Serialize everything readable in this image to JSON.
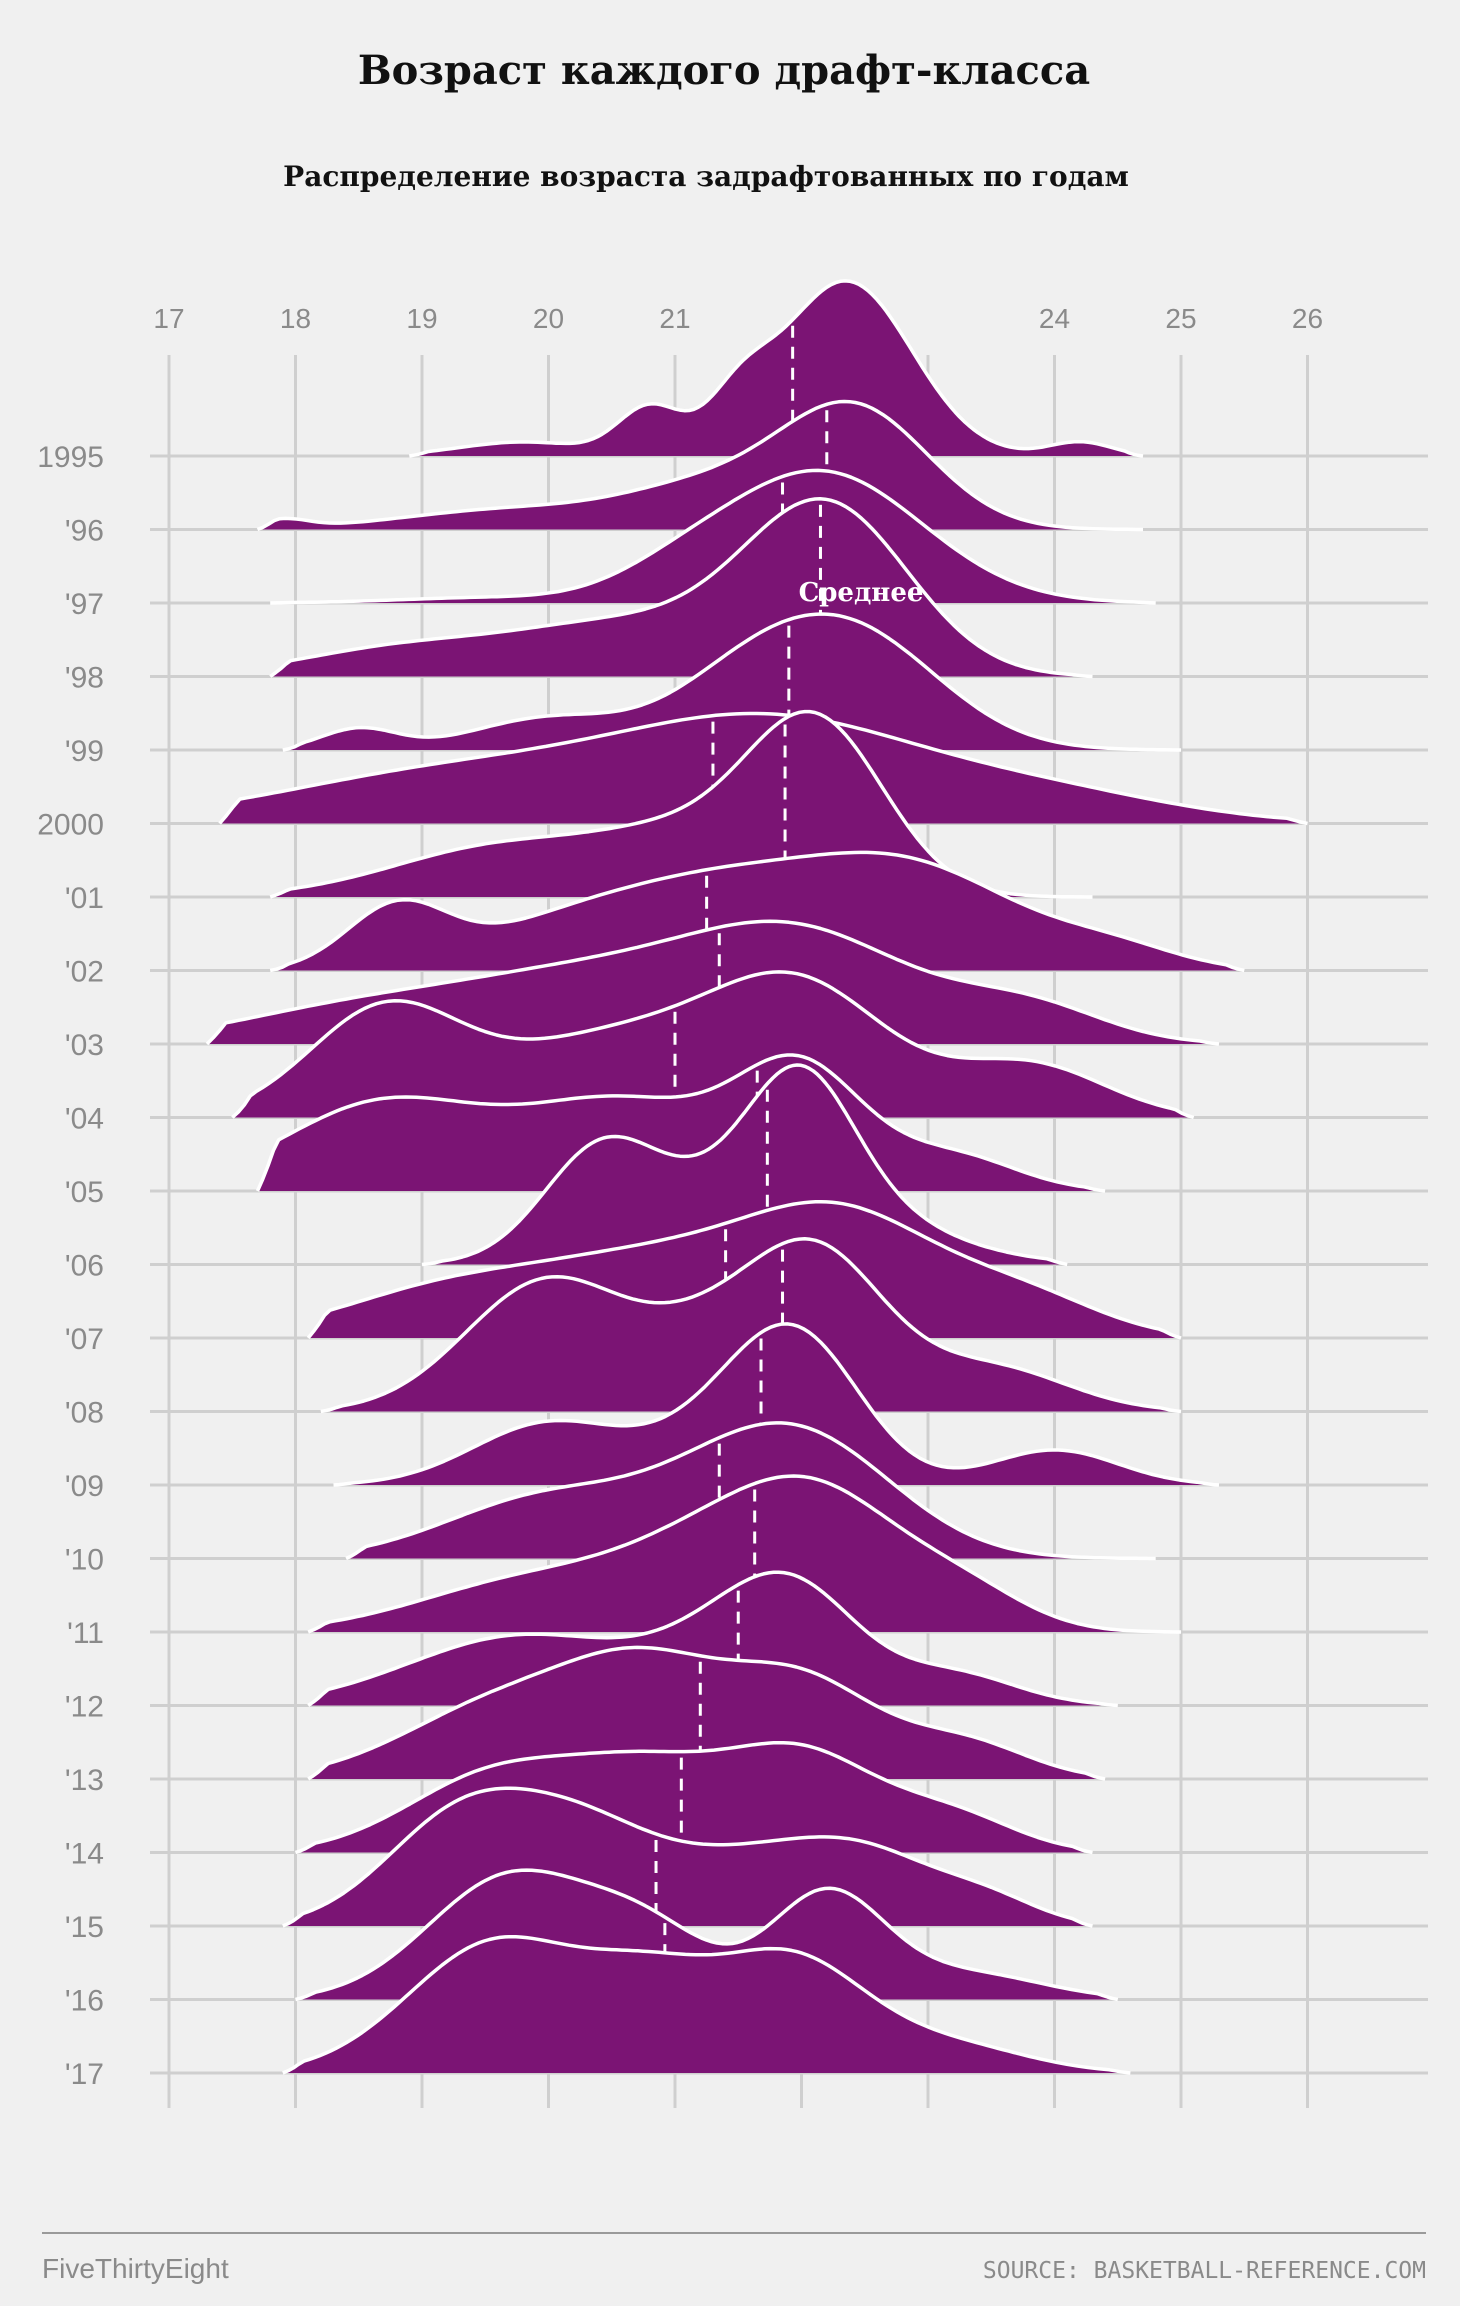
{
  "chart_data": {
    "type": "ridgeline",
    "title": "Возраст каждого драфт-класса",
    "subtitle": "Распределение возраста задрафтованных по годам",
    "x_ticks": [
      {
        "value": 17,
        "label": "17"
      },
      {
        "value": 18,
        "label": "18"
      },
      {
        "value": 19,
        "label": "19"
      },
      {
        "value": 20,
        "label": "20"
      },
      {
        "value": 21,
        "label": "21"
      },
      {
        "value": 24,
        "label": "24"
      },
      {
        "value": 25,
        "label": "25"
      },
      {
        "value": 26,
        "label": "26"
      }
    ],
    "xlim": [
      17,
      27
    ],
    "annotation": "Среднее",
    "source": "SOURCE: BASKETBALL-REFERENCE.COM",
    "brand": "FiveThirtyEight",
    "fill_color": "#7b1474",
    "outline_color": "#ffffff",
    "series": [
      {
        "label": "1995",
        "mean": 21.93,
        "range": [
          18.9,
          24.7
        ],
        "comps": [
          [
            19.8,
            0.5,
            0.08
          ],
          [
            20.8,
            0.25,
            0.27
          ],
          [
            21.5,
            0.25,
            0.25
          ],
          [
            22.35,
            0.52,
            1.0
          ],
          [
            24.2,
            0.25,
            0.08
          ],
          [
            26.4,
            0.15,
            0.04
          ]
        ]
      },
      {
        "label": "'96",
        "mean": 22.2,
        "range": [
          17.7,
          24.7
        ],
        "comps": [
          [
            17.9,
            0.2,
            0.05
          ],
          [
            19.8,
            0.9,
            0.12
          ],
          [
            21.2,
            0.6,
            0.2
          ],
          [
            22.4,
            0.6,
            0.7
          ]
        ]
      },
      {
        "label": "'97",
        "mean": 21.85,
        "range": [
          17.8,
          24.8
        ],
        "comps": [
          [
            19.5,
            0.7,
            0.03
          ],
          [
            21.0,
            0.5,
            0.1
          ],
          [
            22.15,
            0.8,
            0.75
          ]
        ]
      },
      {
        "label": "'98",
        "mean": 22.15,
        "range": [
          17.8,
          24.3
        ],
        "comps": [
          [
            18.8,
            0.8,
            0.15
          ],
          [
            20.6,
            0.9,
            0.3
          ],
          [
            22.2,
            0.65,
            0.95
          ]
        ]
      },
      {
        "label": "'99",
        "mean": 21.9,
        "range": [
          17.9,
          25.0
        ],
        "comps": [
          [
            18.5,
            0.3,
            0.12
          ],
          [
            20.0,
            0.6,
            0.18
          ],
          [
            21.5,
            0.6,
            0.3
          ],
          [
            22.4,
            0.7,
            0.65
          ]
        ]
      },
      {
        "label": "2000",
        "mean": 21.3,
        "range": [
          17.4,
          26.0
        ],
        "comps": [
          [
            19.3,
            1.4,
            0.3
          ],
          [
            21.8,
            1.2,
            0.55
          ],
          [
            24.0,
            1.0,
            0.15
          ]
        ]
      },
      {
        "label": "'01",
        "mean": 21.87,
        "range": [
          17.8,
          24.3
        ],
        "comps": [
          [
            19.7,
            0.9,
            0.3
          ],
          [
            21.0,
            0.6,
            0.25
          ],
          [
            22.1,
            0.55,
            1.0
          ]
        ]
      },
      {
        "label": "'02",
        "mean": 21.25,
        "range": [
          17.8,
          25.5
        ],
        "comps": [
          [
            18.8,
            0.4,
            0.35
          ],
          [
            20.0,
            0.7,
            0.2
          ],
          [
            21.2,
            0.8,
            0.4
          ],
          [
            22.8,
            0.9,
            0.6
          ],
          [
            24.5,
            0.5,
            0.1
          ]
        ]
      },
      {
        "label": "'03",
        "mean": 21.35,
        "range": [
          17.3,
          25.3
        ],
        "comps": [
          [
            18.5,
            1.0,
            0.2
          ],
          [
            20.3,
            1.0,
            0.35
          ],
          [
            22.0,
            0.9,
            0.6
          ],
          [
            23.8,
            0.6,
            0.2
          ]
        ]
      },
      {
        "label": "'04",
        "mean": 21.0,
        "range": [
          17.5,
          25.1
        ],
        "comps": [
          [
            18.7,
            0.6,
            0.6
          ],
          [
            20.5,
            0.9,
            0.45
          ],
          [
            22.0,
            0.7,
            0.7
          ],
          [
            23.8,
            0.6,
            0.3
          ]
        ]
      },
      {
        "label": "'05",
        "mean": 21.65,
        "range": [
          17.7,
          24.4
        ],
        "comps": [
          [
            18.7,
            0.8,
            0.5
          ],
          [
            20.6,
            0.8,
            0.5
          ],
          [
            22.0,
            0.5,
            0.65
          ],
          [
            23.2,
            0.5,
            0.2
          ]
        ]
      },
      {
        "label": "'06",
        "mean": 21.73,
        "range": [
          19.0,
          24.1
        ],
        "comps": [
          [
            20.4,
            0.45,
            0.55
          ],
          [
            21.8,
            0.9,
            0.55
          ],
          [
            22.0,
            0.4,
            0.6
          ]
        ]
      },
      {
        "label": "'07",
        "mean": 21.4,
        "range": [
          18.1,
          25.0
        ],
        "comps": [
          [
            19.3,
            0.9,
            0.3
          ],
          [
            20.8,
            0.8,
            0.35
          ],
          [
            22.3,
            0.8,
            0.7
          ],
          [
            23.8,
            0.6,
            0.2
          ]
        ]
      },
      {
        "label": "'08",
        "mean": 21.85,
        "range": [
          18.2,
          25.0
        ],
        "comps": [
          [
            20.0,
            0.65,
            0.75
          ],
          [
            21.2,
            0.5,
            0.3
          ],
          [
            22.1,
            0.55,
            0.9
          ],
          [
            23.5,
            0.6,
            0.25
          ]
        ]
      },
      {
        "label": "'09",
        "mean": 21.68,
        "range": [
          18.3,
          25.3
        ],
        "comps": [
          [
            20.0,
            0.6,
            0.35
          ],
          [
            21.5,
            0.6,
            0.35
          ],
          [
            22.0,
            0.5,
            0.65
          ],
          [
            24.0,
            0.5,
            0.2
          ]
        ]
      },
      {
        "label": "'10",
        "mean": 21.35,
        "range": [
          18.4,
          24.8
        ],
        "comps": [
          [
            20.0,
            0.8,
            0.35
          ],
          [
            21.5,
            0.7,
            0.4
          ],
          [
            22.2,
            0.7,
            0.45
          ]
        ]
      },
      {
        "label": "'11",
        "mean": 21.63,
        "range": [
          18.1,
          25.0
        ],
        "comps": [
          [
            19.9,
            0.9,
            0.3
          ],
          [
            21.3,
            0.7,
            0.4
          ],
          [
            22.2,
            0.65,
            0.65
          ],
          [
            23.3,
            0.5,
            0.2
          ]
        ]
      },
      {
        "label": "'12",
        "mean": 21.5,
        "range": [
          18.1,
          24.5
        ],
        "comps": [
          [
            19.8,
            0.9,
            0.4
          ],
          [
            21.5,
            0.6,
            0.35
          ],
          [
            22.0,
            0.5,
            0.45
          ],
          [
            23.2,
            0.5,
            0.18
          ]
        ]
      },
      {
        "label": "'13",
        "mean": 21.2,
        "range": [
          18.1,
          24.4
        ],
        "comps": [
          [
            19.7,
            0.8,
            0.45
          ],
          [
            20.8,
            0.6,
            0.5
          ],
          [
            22.0,
            0.6,
            0.55
          ],
          [
            23.3,
            0.5,
            0.2
          ]
        ]
      },
      {
        "label": "'14",
        "mean": 21.05,
        "range": [
          18.0,
          24.3
        ],
        "comps": [
          [
            19.6,
            0.7,
            0.45
          ],
          [
            20.8,
            0.6,
            0.4
          ],
          [
            22.0,
            0.6,
            0.55
          ],
          [
            23.2,
            0.5,
            0.2
          ]
        ]
      },
      {
        "label": "'15",
        "mean": 20.85,
        "range": [
          17.9,
          24.3
        ],
        "comps": [
          [
            19.3,
            0.6,
            0.6
          ],
          [
            20.3,
            0.6,
            0.5
          ],
          [
            21.5,
            0.6,
            0.3
          ],
          [
            22.5,
            0.6,
            0.4
          ],
          [
            23.5,
            0.4,
            0.12
          ]
        ]
      },
      {
        "label": "'16",
        "mean": 20.92,
        "range": [
          18.0,
          24.5
        ],
        "comps": [
          [
            19.7,
            0.65,
            0.7
          ],
          [
            20.8,
            0.5,
            0.35
          ],
          [
            22.2,
            0.45,
            0.6
          ],
          [
            23.3,
            0.6,
            0.15
          ]
        ]
      },
      {
        "label": "'17",
        "mean": null,
        "range": [
          17.9,
          24.6
        ],
        "comps": [
          [
            19.6,
            0.7,
            0.75
          ],
          [
            20.8,
            0.5,
            0.4
          ],
          [
            21.9,
            0.6,
            0.65
          ],
          [
            23.2,
            0.6,
            0.15
          ]
        ]
      }
    ]
  }
}
